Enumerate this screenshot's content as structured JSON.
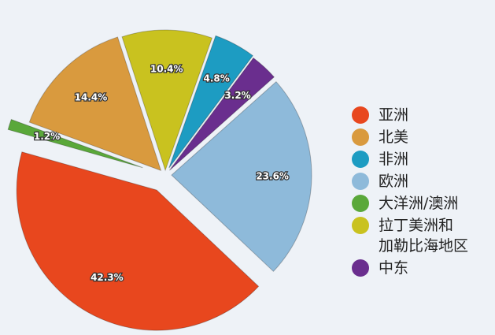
{
  "chart_data": {
    "type": "pie",
    "categories": [
      "亚洲",
      "北美",
      "非洲",
      "欧洲",
      "大洋洲/澳洲",
      "拉丁美洲和\n加勒比海地区",
      "中东"
    ],
    "values": [
      42.3,
      14.4,
      4.8,
      23.6,
      1.2,
      10.4,
      3.2
    ],
    "value_labels": [
      "42.3%",
      "14.4%",
      "4.8%",
      "23.6%",
      "1.2%",
      "10.4%",
      "3.2%"
    ],
    "colors": [
      "#e8471e",
      "#d99a3e",
      "#1d9cc2",
      "#8ebada",
      "#5aa83a",
      "#c9c21f",
      "#6a2e8e"
    ],
    "legend": "right"
  }
}
